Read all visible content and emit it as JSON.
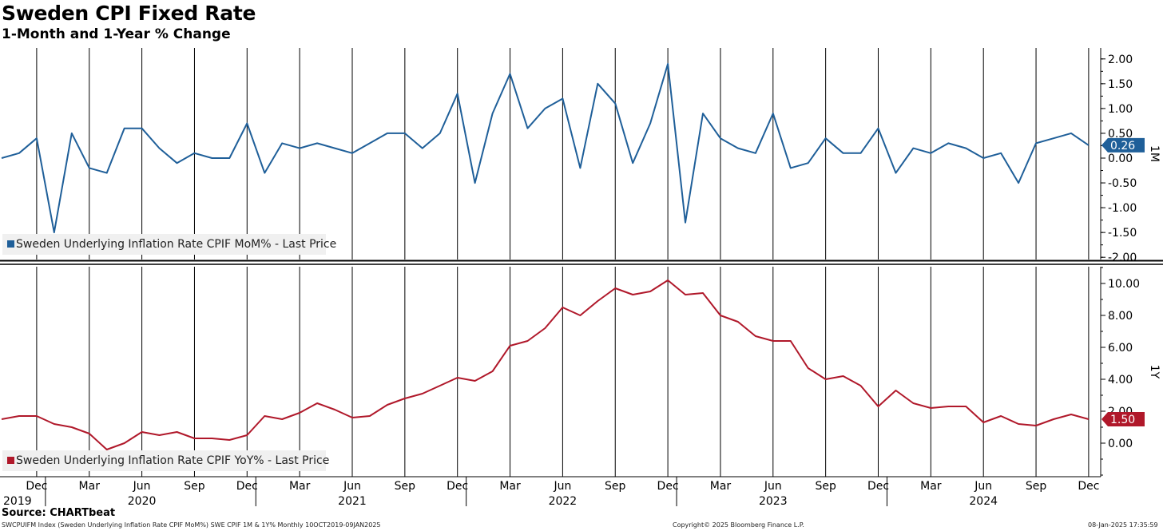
{
  "title": "Sweden CPI Fixed Rate",
  "subtitle": "1-Month and 1-Year % Change",
  "source": "Source: CHARTbeat",
  "footer": {
    "left": "SWCPUIFM Index (Sweden Underlying Inflation Rate CPIF MoM%) SWE CPIF 1M & 1Y%  Monthly 10OCT2019-09JAN2025",
    "center": "Copyright© 2025 Bloomberg Finance L.P.",
    "right": "08-Jan-2025 17:35:59"
  },
  "colors": {
    "mom": "#1f5f99",
    "yoy": "#b0182a",
    "grid": "#000000"
  },
  "chart_data": [
    {
      "type": "line",
      "panel_label": "1M",
      "legend": "Sweden Underlying Inflation Rate CPIF MoM% - Last Price",
      "last_value_label": "0.26",
      "ylim": [
        -2.0,
        2.0
      ],
      "y_ticks": [
        "2.00",
        "1.50",
        "1.00",
        "0.50",
        "0.00",
        "-0.50",
        "-1.00",
        "-1.50",
        "-2.00"
      ],
      "x": [
        "2019-10",
        "2019-11",
        "2019-12",
        "2020-01",
        "2020-02",
        "2020-03",
        "2020-04",
        "2020-05",
        "2020-06",
        "2020-07",
        "2020-08",
        "2020-09",
        "2020-10",
        "2020-11",
        "2020-12",
        "2021-01",
        "2021-02",
        "2021-03",
        "2021-04",
        "2021-05",
        "2021-06",
        "2021-07",
        "2021-08",
        "2021-09",
        "2021-10",
        "2021-11",
        "2021-12",
        "2022-01",
        "2022-02",
        "2022-03",
        "2022-04",
        "2022-05",
        "2022-06",
        "2022-07",
        "2022-08",
        "2022-09",
        "2022-10",
        "2022-11",
        "2022-12",
        "2023-01",
        "2023-02",
        "2023-03",
        "2023-04",
        "2023-05",
        "2023-06",
        "2023-07",
        "2023-08",
        "2023-09",
        "2023-10",
        "2023-11",
        "2023-12",
        "2024-01",
        "2024-02",
        "2024-03",
        "2024-04",
        "2024-05",
        "2024-06",
        "2024-07",
        "2024-08",
        "2024-09",
        "2024-10",
        "2024-11",
        "2024-12"
      ],
      "series": [
        {
          "values": [
            0.0,
            0.1,
            0.4,
            -1.5,
            0.5,
            -0.2,
            -0.3,
            0.6,
            0.6,
            0.2,
            -0.1,
            0.1,
            0.0,
            0.0,
            0.7,
            -0.3,
            0.3,
            0.2,
            0.3,
            0.2,
            0.1,
            0.3,
            0.5,
            0.5,
            0.2,
            0.5,
            1.3,
            -0.5,
            0.9,
            1.7,
            0.6,
            1.0,
            1.2,
            -0.2,
            1.5,
            1.1,
            -0.1,
            0.7,
            1.9,
            -1.3,
            0.9,
            0.4,
            0.2,
            0.1,
            0.9,
            -0.2,
            -0.1,
            0.4,
            0.1,
            0.1,
            0.6,
            -0.3,
            0.2,
            0.1,
            0.3,
            0.2,
            0.0,
            0.1,
            -0.5,
            0.3,
            0.4,
            0.5,
            0.26
          ]
        }
      ]
    },
    {
      "type": "line",
      "panel_label": "1Y",
      "legend": "Sweden Underlying Inflation Rate CPIF YoY% - Last Price",
      "last_value_label": "1.50",
      "ylim": [
        -2.0,
        11.0
      ],
      "y_ticks": [
        "10.00",
        "8.00",
        "6.00",
        "4.00",
        "2.00",
        "0.00"
      ],
      "x": [
        "2019-10",
        "2019-11",
        "2019-12",
        "2020-01",
        "2020-02",
        "2020-03",
        "2020-04",
        "2020-05",
        "2020-06",
        "2020-07",
        "2020-08",
        "2020-09",
        "2020-10",
        "2020-11",
        "2020-12",
        "2021-01",
        "2021-02",
        "2021-03",
        "2021-04",
        "2021-05",
        "2021-06",
        "2021-07",
        "2021-08",
        "2021-09",
        "2021-10",
        "2021-11",
        "2021-12",
        "2022-01",
        "2022-02",
        "2022-03",
        "2022-04",
        "2022-05",
        "2022-06",
        "2022-07",
        "2022-08",
        "2022-09",
        "2022-10",
        "2022-11",
        "2022-12",
        "2023-01",
        "2023-02",
        "2023-03",
        "2023-04",
        "2023-05",
        "2023-06",
        "2023-07",
        "2023-08",
        "2023-09",
        "2023-10",
        "2023-11",
        "2023-12",
        "2024-01",
        "2024-02",
        "2024-03",
        "2024-04",
        "2024-05",
        "2024-06",
        "2024-07",
        "2024-08",
        "2024-09",
        "2024-10",
        "2024-11",
        "2024-12"
      ],
      "series": [
        {
          "values": [
            1.5,
            1.7,
            1.7,
            1.2,
            1.0,
            0.6,
            -0.4,
            0.0,
            0.7,
            0.5,
            0.7,
            0.3,
            0.3,
            0.2,
            0.5,
            1.7,
            1.5,
            1.9,
            2.5,
            2.1,
            1.6,
            1.7,
            2.4,
            2.8,
            3.1,
            3.6,
            4.1,
            3.9,
            4.5,
            6.1,
            6.4,
            7.2,
            8.5,
            8.0,
            8.9,
            9.7,
            9.3,
            9.5,
            10.2,
            9.3,
            9.4,
            8.0,
            7.6,
            6.7,
            6.4,
            6.4,
            4.7,
            4.0,
            4.2,
            3.6,
            2.3,
            3.3,
            2.5,
            2.2,
            2.3,
            2.3,
            1.3,
            1.7,
            1.2,
            1.1,
            1.5,
            1.8,
            1.5
          ]
        }
      ]
    }
  ],
  "x_axis": {
    "months": [
      "Dec",
      "Mar",
      "Jun",
      "Sep",
      "Dec",
      "Mar",
      "Jun",
      "Sep",
      "Dec",
      "Mar",
      "Jun",
      "Sep",
      "Dec",
      "Mar",
      "Jun",
      "Sep",
      "Dec",
      "Mar",
      "Jun",
      "Sep",
      "Dec"
    ],
    "years": [
      "2019",
      "2020",
      "2021",
      "2022",
      "2023",
      "2024"
    ]
  }
}
